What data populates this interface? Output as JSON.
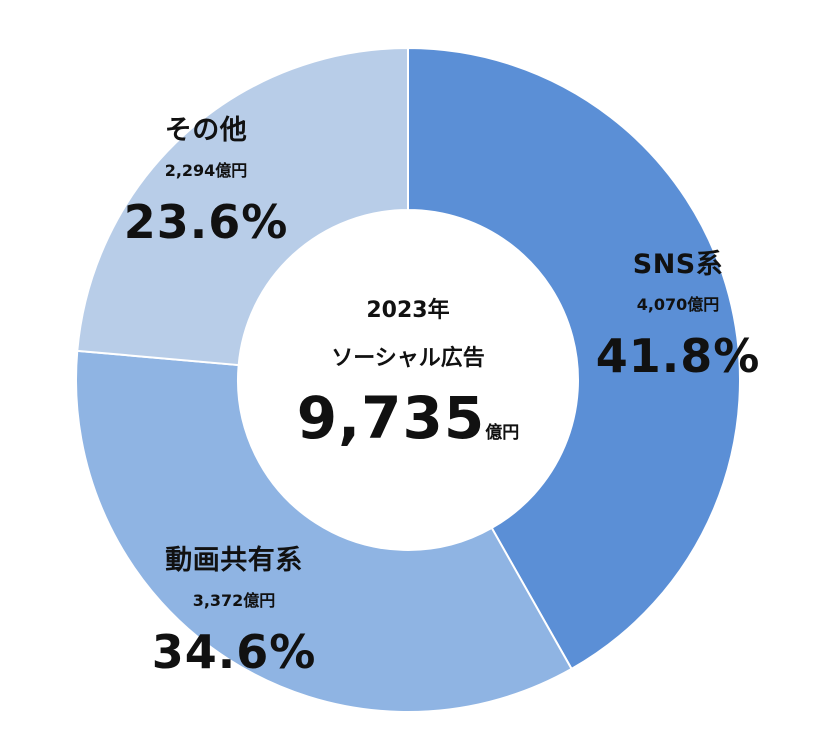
{
  "chart_data": {
    "type": "pie",
    "donut": true,
    "center": {
      "year": "2023年",
      "subtitle": "ソーシャル広告",
      "total": "9,735",
      "total_unit": "億円"
    },
    "slices": [
      {
        "label": "SNS系",
        "amount": "4,070億円",
        "value": 41.8,
        "percent": "41.8%",
        "color": "#5b8fd6"
      },
      {
        "label": "動画共有系",
        "amount": "3,372億円",
        "value": 34.6,
        "percent": "34.6%",
        "color": "#8fb4e3"
      },
      {
        "label": "その他",
        "amount": "2,294億円",
        "value": 23.6,
        "percent": "23.6%",
        "color": "#b8cde8"
      }
    ],
    "legend": "none"
  }
}
